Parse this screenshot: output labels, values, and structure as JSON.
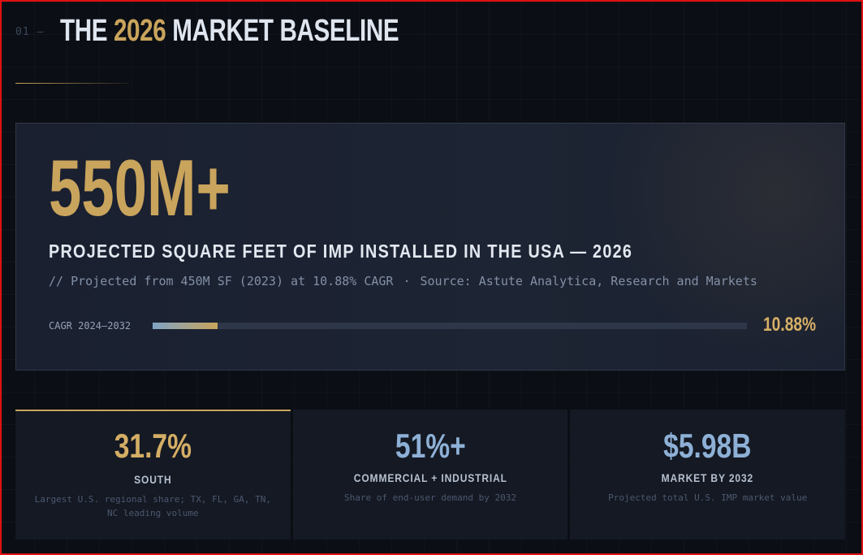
{
  "header": {
    "section_number": "01 —",
    "title_prefix": "THE ",
    "title_accent": "2026",
    "title_suffix": " MARKET BASELINE"
  },
  "hero": {
    "big_number": "550M+",
    "label": "PROJECTED SQUARE FEET OF IMP INSTALLED IN THE USA — 2026",
    "sub_projection": "// Projected from 450M SF (2023) at 10.88% CAGR",
    "sub_separator": "·",
    "sub_source": "Source: Astute Analytica, Research and Markets",
    "bar_label": "CAGR 2024–2032",
    "bar_value": "10.88%",
    "bar_fill_percent": 10.88
  },
  "cards": [
    {
      "value": "31.7%",
      "label": "SOUTH",
      "description": "Largest U.S. regional share; TX, FL, GA, TN, NC leading volume"
    },
    {
      "value": "51%+",
      "label": "COMMERCIAL + INDUSTRIAL",
      "description": "Share of end-user demand by 2032"
    },
    {
      "value": "$5.98B",
      "label": "MARKET BY 2032",
      "description": "Projected total U.S. IMP market value"
    }
  ],
  "colors": {
    "accent_gold": "#c9a45c",
    "accent_blue": "#8eb0d6",
    "background": "#0b0e14"
  }
}
